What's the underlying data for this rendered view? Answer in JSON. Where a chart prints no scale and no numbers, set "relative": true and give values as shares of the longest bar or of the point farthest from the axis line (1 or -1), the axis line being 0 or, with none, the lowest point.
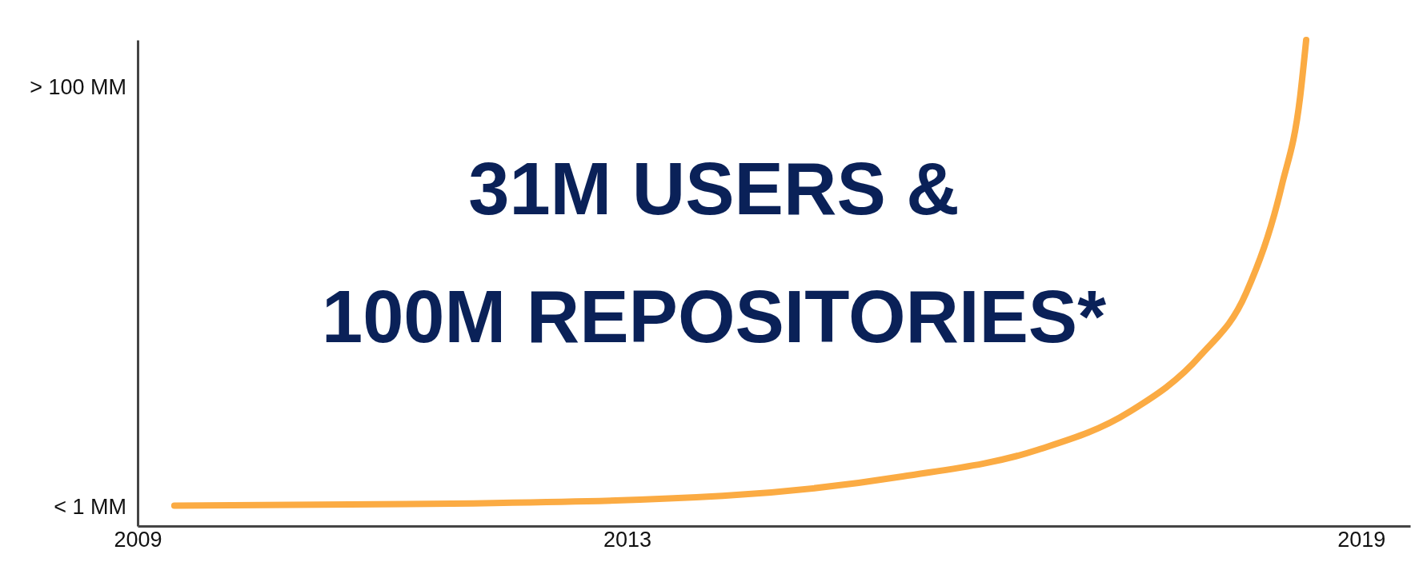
{
  "chart_data": {
    "type": "line",
    "relative": true,
    "x": [
      2009.3,
      2011.57,
      2013.78,
      2015.25,
      2016.36,
      2017.1,
      2017.69,
      2018.06,
      2018.35,
      2018.5,
      2018.55
    ],
    "series": [
      {
        "color": "#fbab43",
        "values": [
          0.042,
          0.046,
          0.062,
          0.102,
          0.157,
          0.234,
          0.352,
          0.48,
          0.7,
          0.882,
          1
        ]
      }
    ],
    "xlim": [
      2009,
      2019.4
    ],
    "xticks": [
      2009,
      2013,
      2019
    ],
    "grid": false,
    "marker": "none",
    "line_style": "solid",
    "annotations": [
      "31M USERS &\n100M REPOSITORIES*",
      "> 100 MM",
      "< 1 MM"
    ]
  }
}
